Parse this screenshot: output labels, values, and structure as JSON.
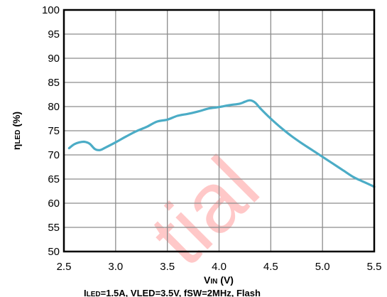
{
  "chart_data": {
    "type": "line",
    "xlabel_main": "V",
    "xlabel_sub": "IN",
    "xlabel_unit": " (V)",
    "ylabel_main": "η",
    "ylabel_sub": "LED",
    "ylabel_unit": " (%)",
    "xlim": [
      2.5,
      5.5
    ],
    "ylim": [
      50,
      100
    ],
    "xticks": [
      "2.5",
      "3.0",
      "3.5",
      "4.0",
      "4.5",
      "5.0",
      "5.5"
    ],
    "yticks": [
      "50",
      "55",
      "60",
      "65",
      "70",
      "75",
      "80",
      "85",
      "90",
      "95",
      "100"
    ],
    "grid": true,
    "line_color": "#4bacc6",
    "series": [
      {
        "x": [
          2.55,
          2.6,
          2.65,
          2.7,
          2.75,
          2.8,
          2.85,
          2.9,
          3.0,
          3.1,
          3.2,
          3.3,
          3.4,
          3.5,
          3.6,
          3.7,
          3.8,
          3.9,
          4.0,
          4.1,
          4.2,
          4.25,
          4.3,
          4.35,
          4.4,
          4.5,
          4.6,
          4.7,
          4.8,
          4.9,
          5.0,
          5.1,
          5.2,
          5.3,
          5.4,
          5.5
        ],
        "y": [
          71.4,
          72.2,
          72.6,
          72.7,
          72.3,
          71.2,
          71.0,
          71.5,
          72.6,
          73.8,
          74.9,
          75.8,
          76.9,
          77.3,
          78.1,
          78.5,
          79.0,
          79.6,
          79.9,
          80.3,
          80.6,
          81.0,
          81.3,
          80.8,
          79.6,
          77.5,
          75.6,
          73.9,
          72.4,
          71.0,
          69.6,
          68.2,
          66.8,
          65.4,
          64.4,
          63.4
        ]
      }
    ]
  },
  "caption": "I",
  "caption_sub": "LED",
  "caption_rest": "=1.5A, VLED=3.5V, fSW=2MHz, Flash",
  "watermark": "tial"
}
